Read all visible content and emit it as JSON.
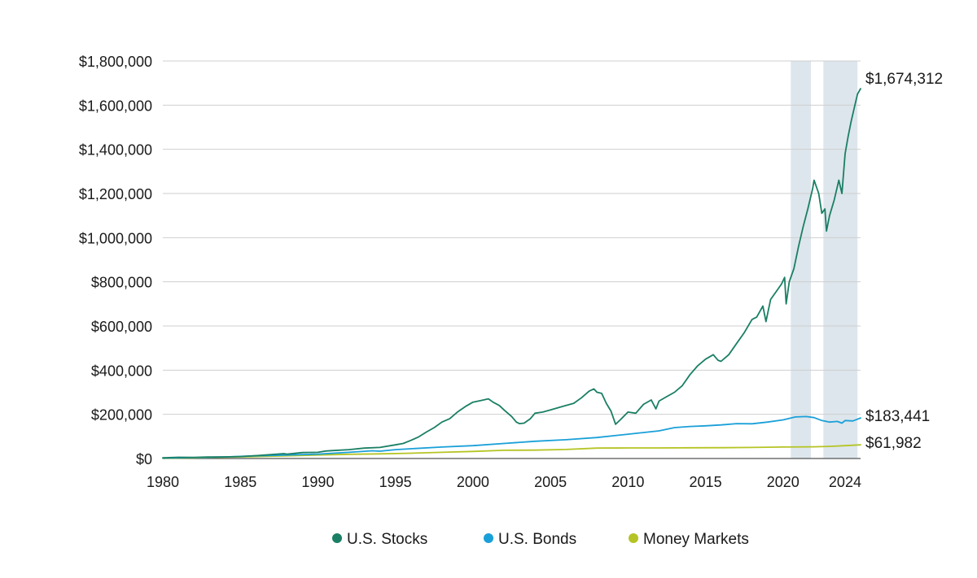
{
  "chart_data": {
    "type": "line",
    "title": "",
    "xlabel": "",
    "ylabel": "",
    "xlim": [
      1980,
      2025.0
    ],
    "ylim": [
      0,
      1800000
    ],
    "grid": true,
    "legend_position": "bottom",
    "y_ticks": [
      {
        "value": 0,
        "label": "$0"
      },
      {
        "value": 200000,
        "label": "$200,000"
      },
      {
        "value": 400000,
        "label": "$400,000"
      },
      {
        "value": 600000,
        "label": "$600,000"
      },
      {
        "value": 800000,
        "label": "$800,000"
      },
      {
        "value": 1000000,
        "label": "$1,000,000"
      },
      {
        "value": 1200000,
        "label": "$1,200,000"
      },
      {
        "value": 1400000,
        "label": "$1,400,000"
      },
      {
        "value": 1600000,
        "label": "$1,600,000"
      },
      {
        "value": 1800000,
        "label": "$1,800,000"
      }
    ],
    "x_ticks": [
      {
        "value": 1980,
        "label": "1980"
      },
      {
        "value": 1985,
        "label": "1985"
      },
      {
        "value": 1990,
        "label": "1990"
      },
      {
        "value": 1995,
        "label": "1995"
      },
      {
        "value": 2000,
        "label": "2000"
      },
      {
        "value": 2005,
        "label": "2005"
      },
      {
        "value": 2010,
        "label": "2010"
      },
      {
        "value": 2015,
        "label": "2015"
      },
      {
        "value": 2020,
        "label": "2020"
      },
      {
        "value": 2024,
        "label": "2024"
      }
    ],
    "shaded_periods": [
      {
        "start": 2020.5,
        "end": 2021.8
      },
      {
        "start": 2022.6,
        "end": 2024.8
      }
    ],
    "series": [
      {
        "name": "U.S. Stocks",
        "color": "#1a7f64",
        "end_label": "$1,674,312",
        "points": [
          [
            1980.0,
            3000
          ],
          [
            1981.0,
            5500
          ],
          [
            1982.0,
            5000
          ],
          [
            1983.0,
            7000
          ],
          [
            1984.0,
            7500
          ],
          [
            1985.0,
            9000
          ],
          [
            1986.0,
            13000
          ],
          [
            1987.0,
            18000
          ],
          [
            1987.8,
            22000
          ],
          [
            1988.0,
            20000
          ],
          [
            1989.0,
            27000
          ],
          [
            1990.0,
            28000
          ],
          [
            1990.5,
            34000
          ],
          [
            1991.0,
            36000
          ],
          [
            1992.0,
            40000
          ],
          [
            1993.0,
            47000
          ],
          [
            1994.0,
            50000
          ],
          [
            1995.0,
            62000
          ],
          [
            1995.5,
            68000
          ],
          [
            1996.0,
            82000
          ],
          [
            1996.5,
            98000
          ],
          [
            1997.0,
            120000
          ],
          [
            1997.5,
            140000
          ],
          [
            1998.0,
            165000
          ],
          [
            1998.5,
            180000
          ],
          [
            1999.0,
            210000
          ],
          [
            1999.5,
            235000
          ],
          [
            2000.0,
            255000
          ],
          [
            2000.5,
            262000
          ],
          [
            2001.0,
            270000
          ],
          [
            2001.3,
            255000
          ],
          [
            2001.7,
            240000
          ],
          [
            2002.0,
            220000
          ],
          [
            2002.5,
            190000
          ],
          [
            2002.8,
            165000
          ],
          [
            2003.0,
            158000
          ],
          [
            2003.3,
            160000
          ],
          [
            2003.7,
            180000
          ],
          [
            2004.0,
            205000
          ],
          [
            2004.5,
            210000
          ],
          [
            2005.0,
            220000
          ],
          [
            2005.5,
            230000
          ],
          [
            2006.0,
            240000
          ],
          [
            2006.5,
            250000
          ],
          [
            2007.0,
            275000
          ],
          [
            2007.5,
            305000
          ],
          [
            2007.8,
            315000
          ],
          [
            2008.0,
            300000
          ],
          [
            2008.3,
            295000
          ],
          [
            2008.6,
            250000
          ],
          [
            2008.9,
            215000
          ],
          [
            2009.2,
            155000
          ],
          [
            2009.5,
            175000
          ],
          [
            2010.0,
            210000
          ],
          [
            2010.5,
            205000
          ],
          [
            2011.0,
            245000
          ],
          [
            2011.5,
            265000
          ],
          [
            2011.8,
            225000
          ],
          [
            2012.0,
            260000
          ],
          [
            2012.5,
            280000
          ],
          [
            2013.0,
            300000
          ],
          [
            2013.5,
            330000
          ],
          [
            2014.0,
            380000
          ],
          [
            2014.5,
            420000
          ],
          [
            2015.0,
            450000
          ],
          [
            2015.5,
            470000
          ],
          [
            2015.8,
            445000
          ],
          [
            2016.0,
            440000
          ],
          [
            2016.5,
            470000
          ],
          [
            2017.0,
            520000
          ],
          [
            2017.5,
            570000
          ],
          [
            2018.0,
            630000
          ],
          [
            2018.3,
            640000
          ],
          [
            2018.7,
            690000
          ],
          [
            2018.9,
            620000
          ],
          [
            2019.2,
            720000
          ],
          [
            2019.6,
            760000
          ],
          [
            2019.9,
            790000
          ],
          [
            2020.1,
            820000
          ],
          [
            2020.2,
            700000
          ],
          [
            2020.4,
            800000
          ],
          [
            2020.7,
            860000
          ],
          [
            2021.0,
            960000
          ],
          [
            2021.3,
            1050000
          ],
          [
            2021.6,
            1130000
          ],
          [
            2021.9,
            1220000
          ],
          [
            2022.0,
            1260000
          ],
          [
            2022.3,
            1200000
          ],
          [
            2022.5,
            1110000
          ],
          [
            2022.7,
            1130000
          ],
          [
            2022.8,
            1030000
          ],
          [
            2023.0,
            1100000
          ],
          [
            2023.3,
            1170000
          ],
          [
            2023.6,
            1260000
          ],
          [
            2023.8,
            1200000
          ],
          [
            2024.0,
            1380000
          ],
          [
            2024.2,
            1460000
          ],
          [
            2024.4,
            1530000
          ],
          [
            2024.6,
            1590000
          ],
          [
            2024.8,
            1650000
          ],
          [
            2025.0,
            1674312
          ]
        ]
      },
      {
        "name": "U.S. Bonds",
        "color": "#1aa0d8",
        "end_label": "$183,441",
        "points": [
          [
            1980.0,
            2000
          ],
          [
            1982.0,
            4000
          ],
          [
            1984.0,
            7000
          ],
          [
            1986.0,
            12000
          ],
          [
            1988.0,
            16000
          ],
          [
            1990.0,
            20000
          ],
          [
            1992.0,
            28000
          ],
          [
            1993.5,
            35000
          ],
          [
            1994.0,
            33000
          ],
          [
            1995.0,
            40000
          ],
          [
            1996.0,
            44000
          ],
          [
            1998.0,
            52000
          ],
          [
            2000.0,
            58000
          ],
          [
            2002.0,
            68000
          ],
          [
            2004.0,
            78000
          ],
          [
            2006.0,
            85000
          ],
          [
            2008.0,
            95000
          ],
          [
            2010.0,
            110000
          ],
          [
            2012.0,
            125000
          ],
          [
            2013.0,
            140000
          ],
          [
            2014.0,
            145000
          ],
          [
            2015.0,
            148000
          ],
          [
            2016.0,
            152000
          ],
          [
            2017.0,
            158000
          ],
          [
            2018.0,
            157000
          ],
          [
            2019.0,
            165000
          ],
          [
            2020.0,
            175000
          ],
          [
            2020.8,
            188000
          ],
          [
            2021.5,
            190000
          ],
          [
            2022.0,
            185000
          ],
          [
            2022.5,
            172000
          ],
          [
            2023.0,
            165000
          ],
          [
            2023.5,
            168000
          ],
          [
            2023.8,
            160000
          ],
          [
            2024.0,
            172000
          ],
          [
            2024.5,
            170000
          ],
          [
            2025.0,
            183441
          ]
        ]
      },
      {
        "name": "Money Markets",
        "color": "#b5c424",
        "end_label": "$61,982",
        "points": [
          [
            1980.0,
            1000
          ],
          [
            1982.0,
            3000
          ],
          [
            1984.0,
            6000
          ],
          [
            1986.0,
            9000
          ],
          [
            1988.0,
            12000
          ],
          [
            1990.0,
            16000
          ],
          [
            1992.0,
            19000
          ],
          [
            1994.0,
            21000
          ],
          [
            1996.0,
            24000
          ],
          [
            1998.0,
            28000
          ],
          [
            2000.0,
            32000
          ],
          [
            2002.0,
            37000
          ],
          [
            2004.0,
            38000
          ],
          [
            2006.0,
            41000
          ],
          [
            2008.0,
            47000
          ],
          [
            2010.0,
            48000
          ],
          [
            2012.0,
            48000
          ],
          [
            2014.0,
            48500
          ],
          [
            2016.0,
            49000
          ],
          [
            2018.0,
            50000
          ],
          [
            2020.0,
            52000
          ],
          [
            2022.0,
            53000
          ],
          [
            2023.0,
            55000
          ],
          [
            2024.0,
            58000
          ],
          [
            2025.0,
            61982
          ]
        ]
      }
    ]
  }
}
